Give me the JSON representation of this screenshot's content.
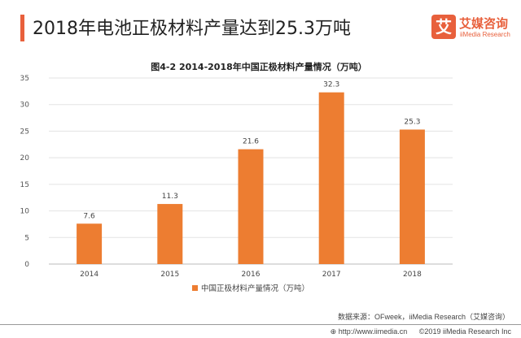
{
  "header": {
    "title": "2018年电池正极材料产量达到25.3万吨"
  },
  "logo": {
    "icon_char": "艾",
    "cn": "艾媒咨询",
    "en": "iiMedia Research"
  },
  "chart_data": {
    "type": "bar",
    "title": "图4-2 2014-2018年中国正极材料产量情况（万吨）",
    "categories": [
      "2014",
      "2015",
      "2016",
      "2017",
      "2018"
    ],
    "series": [
      {
        "name": "中国正极材料产量情况（万吨）",
        "values": [
          7.6,
          11.3,
          21.6,
          32.3,
          25.3
        ]
      }
    ],
    "ylim": [
      0,
      35
    ],
    "yticks": [
      0,
      5,
      10,
      15,
      20,
      25,
      30,
      35
    ],
    "grid": true,
    "legend": "bottom",
    "bar_color": "#ed7d31",
    "data_labels": [
      "7.6",
      "11.3",
      "21.6",
      "32.3",
      "25.3"
    ]
  },
  "footer": {
    "source": "数据来源：OFweek，iiMedia Research（艾媒咨询）",
    "url": "http://www.iimedia.cn",
    "copyright": "©2019  iiMedia Research  Inc",
    "globe_icon": "globe-icon"
  }
}
